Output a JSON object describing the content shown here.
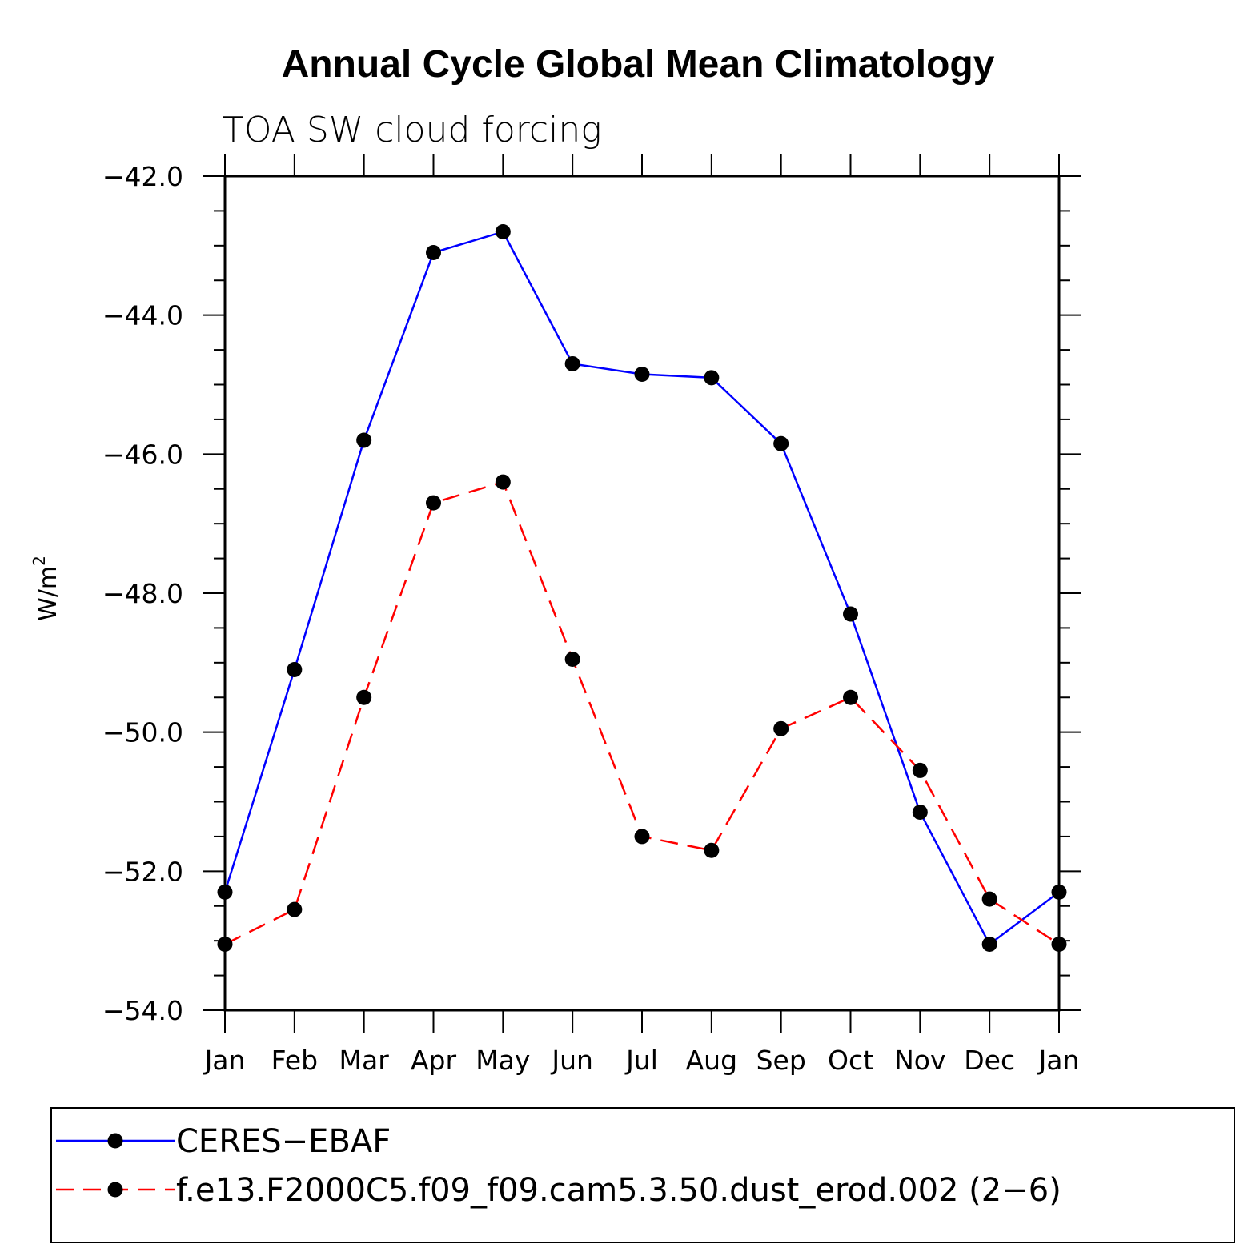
{
  "chart_data": {
    "type": "line",
    "title": "Annual Cycle Global Mean Climatology",
    "subtitle": "TOA SW cloud forcing",
    "ylabel": "W/m",
    "ylabel_sup": "2",
    "ylim": [
      -54.0,
      -42.0
    ],
    "yticks": [
      -42.0,
      -44.0,
      -46.0,
      -48.0,
      -50.0,
      -52.0,
      -54.0
    ],
    "ytick_labels": [
      "−42.0",
      "−44.0",
      "−46.0",
      "−48.0",
      "−50.0",
      "−52.0",
      "−54.0"
    ],
    "categories": [
      "Jan",
      "Feb",
      "Mar",
      "Apr",
      "May",
      "Jun",
      "Jul",
      "Aug",
      "Sep",
      "Oct",
      "Nov",
      "Dec",
      "Jan"
    ],
    "grid": false,
    "legend_position": "bottom",
    "series": [
      {
        "name": "CERES−EBAF",
        "color": "#0000ff",
        "style": "solid",
        "marker": "filled-circle",
        "values": [
          -52.3,
          -49.1,
          -45.8,
          -43.1,
          -42.8,
          -44.7,
          -44.85,
          -44.9,
          -45.85,
          -48.3,
          -51.15,
          -53.05,
          -52.3
        ]
      },
      {
        "name": "f.e13.F2000C5.f09_f09.cam5.3.50.dust_erod.002 (2−6)",
        "color": "#ff0000",
        "style": "dashed",
        "marker": "filled-circle",
        "values": [
          -53.05,
          -52.55,
          -49.5,
          -46.7,
          -46.4,
          -48.95,
          -51.5,
          -51.7,
          -49.95,
          -49.5,
          -50.55,
          -52.4,
          -53.05
        ]
      }
    ]
  }
}
